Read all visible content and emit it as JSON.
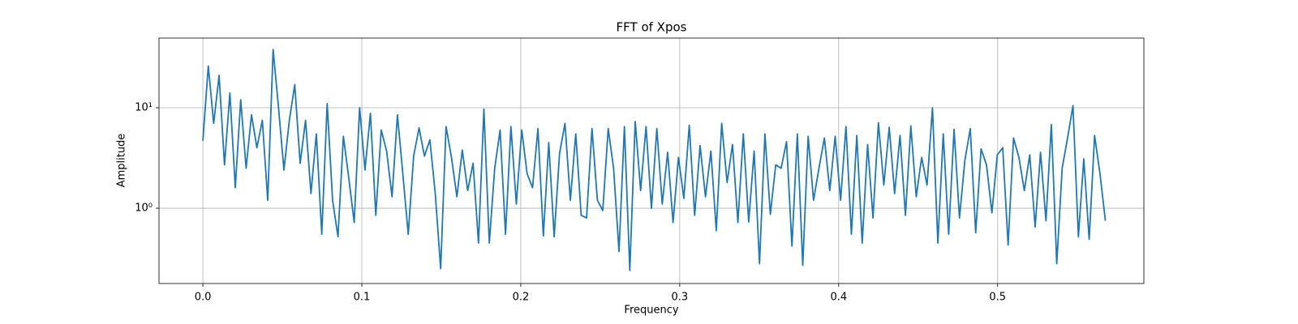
{
  "chart_data": {
    "type": "line",
    "title": "FFT of Xpos",
    "x_label": "Frequency",
    "y_label": "Amplitude",
    "color": "#1f77b4",
    "grid": true,
    "y_scale": "log",
    "xlim": [
      -0.0276,
      0.592
    ],
    "ylim": [
      0.178,
      49.4
    ],
    "xticks": [
      {
        "value": 0,
        "label": "0.0"
      },
      {
        "value": 0.1,
        "label": "0.1"
      },
      {
        "value": 0.2,
        "label": "0.2"
      },
      {
        "value": 0.3,
        "label": "0.3"
      },
      {
        "value": 0.4,
        "label": "0.4"
      },
      {
        "value": 0.5,
        "label": "0.5"
      }
    ],
    "yticks": [
      {
        "value": 1,
        "label": "10⁰"
      },
      {
        "value": 10,
        "label": "10¹"
      }
    ],
    "x": [
      0,
      0.0034,
      0.0068,
      0.0102,
      0.0136,
      0.017,
      0.0204,
      0.0238,
      0.0272,
      0.0306,
      0.034,
      0.0374,
      0.0408,
      0.0442,
      0.0476,
      0.051,
      0.0544,
      0.0578,
      0.0612,
      0.0646,
      0.068,
      0.0714,
      0.0748,
      0.0782,
      0.0816,
      0.085,
      0.0884,
      0.0918,
      0.0952,
      0.0986,
      0.102,
      0.1054,
      0.1088,
      0.1122,
      0.1156,
      0.119,
      0.1224,
      0.1258,
      0.1292,
      0.1326,
      0.136,
      0.1394,
      0.1428,
      0.1462,
      0.1496,
      0.153,
      0.1564,
      0.1598,
      0.1632,
      0.1666,
      0.17,
      0.1734,
      0.1768,
      0.1802,
      0.1836,
      0.187,
      0.1904,
      0.1938,
      0.1972,
      0.2006,
      0.204,
      0.2074,
      0.2108,
      0.2142,
      0.2176,
      0.221,
      0.2244,
      0.2278,
      0.2312,
      0.2346,
      0.238,
      0.2414,
      0.2448,
      0.2482,
      0.2516,
      0.255,
      0.2584,
      0.2618,
      0.2652,
      0.2686,
      0.272,
      0.2754,
      0.2788,
      0.2822,
      0.2856,
      0.289,
      0.2924,
      0.2958,
      0.2992,
      0.3026,
      0.306,
      0.3094,
      0.3128,
      0.3162,
      0.3196,
      0.323,
      0.3264,
      0.3298,
      0.3332,
      0.3366,
      0.34,
      0.3434,
      0.3468,
      0.3502,
      0.3536,
      0.357,
      0.3604,
      0.3638,
      0.3672,
      0.3706,
      0.374,
      0.3774,
      0.3808,
      0.3842,
      0.3876,
      0.391,
      0.3944,
      0.3978,
      0.4012,
      0.4046,
      0.408,
      0.4114,
      0.4148,
      0.4182,
      0.4216,
      0.425,
      0.4284,
      0.4318,
      0.4352,
      0.4386,
      0.442,
      0.4454,
      0.4488,
      0.4522,
      0.4556,
      0.459,
      0.4624,
      0.4658,
      0.4692,
      0.4726,
      0.476,
      0.4794,
      0.4828,
      0.4862,
      0.4896,
      0.493,
      0.4964,
      0.4998,
      0.5032,
      0.5066,
      0.51,
      0.5134,
      0.5168,
      0.5202,
      0.5236,
      0.527,
      0.5304,
      0.5338,
      0.5372,
      0.5406,
      0.544,
      0.5474,
      0.5508,
      0.5542,
      0.5576,
      0.561,
      0.5644,
      0.5678
    ],
    "values": [
      4.7,
      26,
      7,
      21,
      2.7,
      14,
      1.6,
      12,
      2.5,
      8.5,
      4,
      7.5,
      1.2,
      38,
      10,
      2.4,
      7.5,
      17,
      2.8,
      7.5,
      1.4,
      5.5,
      0.55,
      11,
      1.2,
      0.52,
      5.2,
      2,
      0.72,
      10,
      2.4,
      8.8,
      0.85,
      6,
      3.7,
      1.3,
      8.5,
      2.2,
      0.55,
      3.3,
      6.3,
      3.3,
      4.8,
      1.4,
      0.25,
      6.5,
      3.2,
      1.3,
      3.8,
      1.5,
      2.8,
      0.45,
      9.7,
      0.45,
      2.5,
      6,
      0.55,
      6.5,
      1.1,
      6,
      2.2,
      1.6,
      6.2,
      0.53,
      4.5,
      0.52,
      3.5,
      7,
      1.2,
      5.5,
      0.85,
      0.8,
      6.2,
      1.2,
      0.95,
      6.2,
      2.5,
      0.37,
      6.5,
      0.24,
      7.3,
      1.5,
      6.5,
      1,
      6.2,
      1.1,
      3.6,
      0.72,
      3.2,
      1.25,
      6.7,
      0.85,
      4.2,
      1.3,
      3.7,
      0.6,
      7,
      1.8,
      4.3,
      0.72,
      5.5,
      0.73,
      3.7,
      0.28,
      5.5,
      0.87,
      2.7,
      2.5,
      4.6,
      0.42,
      5.5,
      0.27,
      5.2,
      1.2,
      2.5,
      5,
      1.5,
      5.2,
      1.2,
      6.5,
      0.55,
      5.3,
      0.45,
      4.3,
      0.8,
      7.1,
      1.7,
      6.4,
      1.4,
      5.3,
      0.85,
      6.6,
      1.3,
      3.2,
      1.7,
      10,
      0.45,
      5.5,
      0.55,
      6.1,
      0.8,
      3,
      6.2,
      0.57,
      3.9,
      2.7,
      0.9,
      3.4,
      4,
      0.43,
      5,
      3.2,
      1.5,
      3.4,
      0.65,
      3.6,
      0.75,
      6.8,
      0.28,
      2.5,
      5,
      10.5,
      0.52,
      3.1,
      0.49,
      5.3,
      2.2,
      0.75
    ]
  }
}
